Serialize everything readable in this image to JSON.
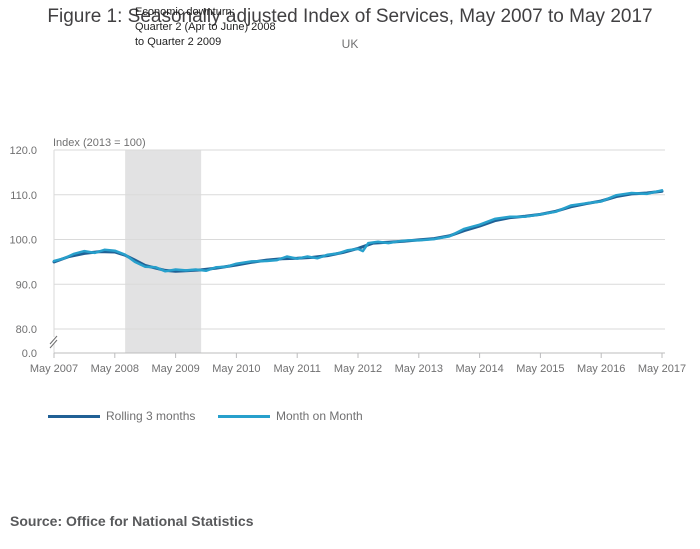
{
  "figure": {
    "title": "Figure 1: Seasonally adjusted Index of Services, May 2007 to May 2017",
    "subtitle": "UK",
    "source": "Source: Office for National Statistics"
  },
  "chart_data": {
    "type": "line",
    "title": "Figure 1: Seasonally adjusted Index of Services, May 2007 to May 2017",
    "subtitle": "UK",
    "ylabel": "Index (2013 = 100)",
    "xlabel": "",
    "ylim": [
      80,
      120
    ],
    "y_axis_break": true,
    "y_ticks": [
      "120.0",
      "110.0",
      "100.0",
      "90.0",
      "80.0",
      "0.0"
    ],
    "y_tick_values": [
      120,
      110,
      100,
      90,
      80
    ],
    "x_ticks": [
      "May 2007",
      "May 2008",
      "May 2009",
      "May 2010",
      "May 2011",
      "May 2012",
      "May 2013",
      "May 2014",
      "May 2015",
      "May 2016",
      "May 2017"
    ],
    "x_tick_values": [
      0,
      1,
      2,
      3,
      4,
      5,
      6,
      7,
      8,
      9,
      10
    ],
    "grid": true,
    "legend_position": "bottom-left",
    "shaded_region": {
      "x_start": 1.17,
      "x_end": 2.42,
      "label_lines": [
        "Economic downturn:",
        "Quarter 2 (Apr to June) 2008",
        "to Quarter 2 2009"
      ]
    },
    "series": [
      {
        "name": "Rolling 3 months",
        "color": "#206095",
        "x": [
          0,
          0.25,
          0.5,
          0.75,
          1.0,
          1.17,
          1.33,
          1.5,
          1.67,
          1.83,
          2.0,
          2.17,
          2.42,
          2.67,
          3.0,
          3.25,
          3.5,
          3.75,
          4.0,
          4.25,
          4.5,
          4.75,
          5.0,
          5.25,
          5.5,
          5.75,
          6.0,
          6.25,
          6.5,
          6.75,
          7.0,
          7.25,
          7.5,
          7.75,
          8.0,
          8.25,
          8.5,
          8.75,
          9.0,
          9.25,
          9.5,
          9.75,
          10.0
        ],
        "y": [
          95.0,
          96.2,
          96.9,
          97.3,
          97.2,
          96.5,
          95.4,
          94.2,
          93.6,
          93.1,
          92.9,
          93.0,
          93.2,
          93.6,
          94.3,
          94.9,
          95.4,
          95.7,
          95.8,
          96.0,
          96.4,
          97.1,
          98.0,
          99.2,
          99.4,
          99.6,
          99.9,
          100.2,
          100.8,
          102.0,
          103.0,
          104.2,
          104.9,
          105.2,
          105.6,
          106.3,
          107.3,
          108.0,
          108.6,
          109.6,
          110.2,
          110.4,
          110.8
        ]
      },
      {
        "name": "Month on Month",
        "color": "#27a0cc",
        "x": [
          0,
          0.17,
          0.33,
          0.5,
          0.67,
          0.83,
          1.0,
          1.17,
          1.33,
          1.5,
          1.67,
          1.83,
          2.0,
          2.17,
          2.33,
          2.5,
          2.67,
          2.83,
          3.0,
          3.25,
          3.5,
          3.67,
          3.83,
          4.0,
          4.17,
          4.33,
          4.5,
          4.67,
          4.83,
          5.0,
          5.08,
          5.17,
          5.33,
          5.5,
          5.67,
          5.83,
          6.0,
          6.25,
          6.5,
          6.75,
          7.0,
          7.25,
          7.5,
          7.75,
          8.0,
          8.25,
          8.5,
          8.75,
          9.0,
          9.25,
          9.5,
          9.75,
          10.0
        ],
        "y": [
          95.2,
          95.8,
          96.8,
          97.4,
          97.0,
          97.7,
          97.5,
          96.6,
          95.0,
          93.9,
          93.8,
          92.9,
          93.3,
          93.1,
          93.3,
          93.0,
          93.8,
          93.9,
          94.6,
          95.1,
          95.2,
          95.4,
          96.2,
          95.7,
          96.2,
          95.8,
          96.6,
          96.9,
          97.6,
          97.9,
          97.4,
          99.2,
          99.5,
          99.2,
          99.6,
          99.8,
          99.8,
          100.1,
          100.7,
          102.4,
          103.3,
          104.6,
          105.1,
          105.1,
          105.6,
          106.2,
          107.6,
          108.1,
          108.5,
          109.9,
          110.4,
          110.2,
          111.0
        ]
      }
    ]
  }
}
